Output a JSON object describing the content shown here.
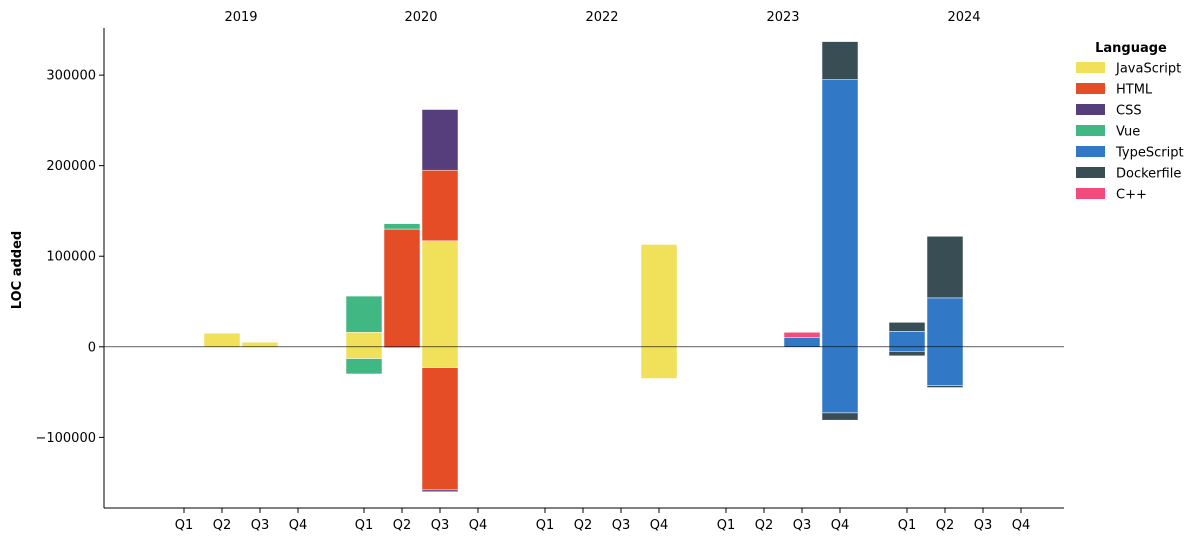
{
  "chart_data": {
    "type": "bar",
    "stacked": true,
    "ylabel": "LOC added",
    "ylim": [
      -178000,
      352000
    ],
    "yticks": [
      -100000,
      0,
      100000,
      200000,
      300000
    ],
    "ytick_labels": [
      "−100000",
      "0",
      "100000",
      "200000",
      "300000"
    ],
    "years": [
      "2019",
      "2020",
      "2022",
      "2023",
      "2024"
    ],
    "quarters": [
      "Q1",
      "Q2",
      "Q3",
      "Q4"
    ],
    "legend": {
      "title": "Language",
      "position": "top-right",
      "entries": [
        "JavaScript",
        "HTML",
        "CSS",
        "Vue",
        "TypeScript",
        "Dockerfile",
        "C++"
      ]
    },
    "colors": {
      "JavaScript": "#f0e05a",
      "HTML": "#e44d26",
      "CSS": "#563d7c",
      "Vue": "#41b883",
      "TypeScript": "#3178c6",
      "Dockerfile": "#384d54",
      "C++": "#f34b7d"
    },
    "series": [
      {
        "name": "JavaScript",
        "values": {
          "2019": [
            0,
            15000,
            5000,
            0
          ],
          "2020": [
            [
              16000,
              -13000
            ],
            0,
            [
              117000,
              -23000
            ],
            0
          ],
          "2022": [
            0,
            0,
            0,
            [
              113000,
              -35000
            ]
          ],
          "2023": [
            0,
            0,
            0,
            0
          ],
          "2024": [
            0,
            0,
            0,
            0
          ]
        }
      },
      {
        "name": "HTML",
        "values": {
          "2019": [
            0,
            0,
            0,
            0
          ],
          "2020": [
            0,
            [
              130000,
              -1000
            ],
            [
              78000,
              -135000
            ],
            0
          ],
          "2022": [
            0,
            0,
            0,
            0
          ],
          "2023": [
            0,
            0,
            0,
            0
          ],
          "2024": [
            0,
            0,
            0,
            0
          ]
        }
      },
      {
        "name": "CSS",
        "values": {
          "2019": [
            0,
            0,
            0,
            0
          ],
          "2020": [
            0,
            0,
            [
              67000,
              -2000
            ],
            0
          ],
          "2022": [
            0,
            0,
            0,
            0
          ],
          "2023": [
            0,
            0,
            0,
            0
          ],
          "2024": [
            0,
            0,
            0,
            0
          ]
        }
      },
      {
        "name": "Vue",
        "values": {
          "2019": [
            0,
            0,
            0,
            0
          ],
          "2020": [
            [
              40000,
              -17000
            ],
            [
              6000,
              0
            ],
            0,
            0
          ],
          "2022": [
            0,
            0,
            0,
            0
          ],
          "2023": [
            0,
            0,
            0,
            0
          ],
          "2024": [
            0,
            0,
            0,
            0
          ]
        }
      },
      {
        "name": "TypeScript",
        "values": {
          "2019": [
            0,
            0,
            0,
            0
          ],
          "2020": [
            0,
            0,
            0,
            0
          ],
          "2022": [
            0,
            0,
            0,
            0
          ],
          "2023": [
            0,
            0,
            [
              10000,
              0
            ],
            [
              295000,
              -73000
            ]
          ],
          "2024": [
            [
              17000,
              -5000
            ],
            [
              54000,
              -43000
            ],
            0,
            0
          ]
        }
      },
      {
        "name": "Dockerfile",
        "values": {
          "2019": [
            0,
            0,
            0,
            0
          ],
          "2020": [
            0,
            0,
            0,
            0
          ],
          "2022": [
            0,
            0,
            0,
            0
          ],
          "2023": [
            0,
            0,
            0,
            [
              42000,
              -8000
            ]
          ],
          "2024": [
            [
              10000,
              -5000
            ],
            [
              68000,
              -2000
            ],
            0,
            0
          ]
        }
      },
      {
        "name": "C++",
        "values": {
          "2019": [
            0,
            0,
            0,
            0
          ],
          "2020": [
            0,
            0,
            0,
            0
          ],
          "2022": [
            0,
            0,
            0,
            0
          ],
          "2023": [
            0,
            0,
            [
              6000,
              0
            ],
            0
          ],
          "2024": [
            0,
            0,
            0,
            0
          ]
        }
      }
    ]
  }
}
